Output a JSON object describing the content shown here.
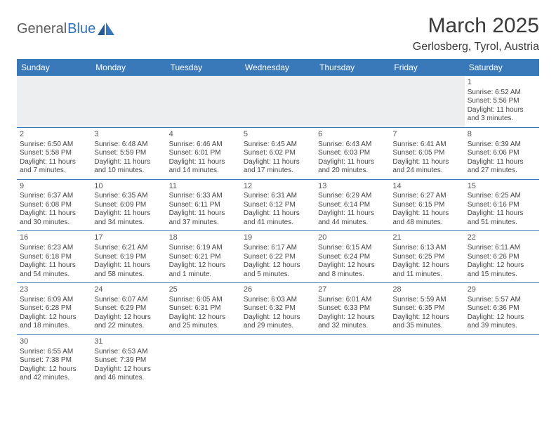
{
  "logo": {
    "general": "General",
    "blue": "Blue"
  },
  "title": "March 2025",
  "location": "Gerlosberg, Tyrol, Austria",
  "headerColor": "#3a79b9",
  "dayNames": [
    "Sunday",
    "Monday",
    "Tuesday",
    "Wednesday",
    "Thursday",
    "Friday",
    "Saturday"
  ],
  "weeks": [
    [
      null,
      null,
      null,
      null,
      null,
      null,
      {
        "n": "1",
        "sr": "Sunrise: 6:52 AM",
        "ss": "Sunset: 5:56 PM",
        "d1": "Daylight: 11 hours",
        "d2": "and 3 minutes."
      }
    ],
    [
      {
        "n": "2",
        "sr": "Sunrise: 6:50 AM",
        "ss": "Sunset: 5:58 PM",
        "d1": "Daylight: 11 hours",
        "d2": "and 7 minutes."
      },
      {
        "n": "3",
        "sr": "Sunrise: 6:48 AM",
        "ss": "Sunset: 5:59 PM",
        "d1": "Daylight: 11 hours",
        "d2": "and 10 minutes."
      },
      {
        "n": "4",
        "sr": "Sunrise: 6:46 AM",
        "ss": "Sunset: 6:01 PM",
        "d1": "Daylight: 11 hours",
        "d2": "and 14 minutes."
      },
      {
        "n": "5",
        "sr": "Sunrise: 6:45 AM",
        "ss": "Sunset: 6:02 PM",
        "d1": "Daylight: 11 hours",
        "d2": "and 17 minutes."
      },
      {
        "n": "6",
        "sr": "Sunrise: 6:43 AM",
        "ss": "Sunset: 6:03 PM",
        "d1": "Daylight: 11 hours",
        "d2": "and 20 minutes."
      },
      {
        "n": "7",
        "sr": "Sunrise: 6:41 AM",
        "ss": "Sunset: 6:05 PM",
        "d1": "Daylight: 11 hours",
        "d2": "and 24 minutes."
      },
      {
        "n": "8",
        "sr": "Sunrise: 6:39 AM",
        "ss": "Sunset: 6:06 PM",
        "d1": "Daylight: 11 hours",
        "d2": "and 27 minutes."
      }
    ],
    [
      {
        "n": "9",
        "sr": "Sunrise: 6:37 AM",
        "ss": "Sunset: 6:08 PM",
        "d1": "Daylight: 11 hours",
        "d2": "and 30 minutes."
      },
      {
        "n": "10",
        "sr": "Sunrise: 6:35 AM",
        "ss": "Sunset: 6:09 PM",
        "d1": "Daylight: 11 hours",
        "d2": "and 34 minutes."
      },
      {
        "n": "11",
        "sr": "Sunrise: 6:33 AM",
        "ss": "Sunset: 6:11 PM",
        "d1": "Daylight: 11 hours",
        "d2": "and 37 minutes."
      },
      {
        "n": "12",
        "sr": "Sunrise: 6:31 AM",
        "ss": "Sunset: 6:12 PM",
        "d1": "Daylight: 11 hours",
        "d2": "and 41 minutes."
      },
      {
        "n": "13",
        "sr": "Sunrise: 6:29 AM",
        "ss": "Sunset: 6:14 PM",
        "d1": "Daylight: 11 hours",
        "d2": "and 44 minutes."
      },
      {
        "n": "14",
        "sr": "Sunrise: 6:27 AM",
        "ss": "Sunset: 6:15 PM",
        "d1": "Daylight: 11 hours",
        "d2": "and 48 minutes."
      },
      {
        "n": "15",
        "sr": "Sunrise: 6:25 AM",
        "ss": "Sunset: 6:16 PM",
        "d1": "Daylight: 11 hours",
        "d2": "and 51 minutes."
      }
    ],
    [
      {
        "n": "16",
        "sr": "Sunrise: 6:23 AM",
        "ss": "Sunset: 6:18 PM",
        "d1": "Daylight: 11 hours",
        "d2": "and 54 minutes."
      },
      {
        "n": "17",
        "sr": "Sunrise: 6:21 AM",
        "ss": "Sunset: 6:19 PM",
        "d1": "Daylight: 11 hours",
        "d2": "and 58 minutes."
      },
      {
        "n": "18",
        "sr": "Sunrise: 6:19 AM",
        "ss": "Sunset: 6:21 PM",
        "d1": "Daylight: 12 hours",
        "d2": "and 1 minute."
      },
      {
        "n": "19",
        "sr": "Sunrise: 6:17 AM",
        "ss": "Sunset: 6:22 PM",
        "d1": "Daylight: 12 hours",
        "d2": "and 5 minutes."
      },
      {
        "n": "20",
        "sr": "Sunrise: 6:15 AM",
        "ss": "Sunset: 6:24 PM",
        "d1": "Daylight: 12 hours",
        "d2": "and 8 minutes."
      },
      {
        "n": "21",
        "sr": "Sunrise: 6:13 AM",
        "ss": "Sunset: 6:25 PM",
        "d1": "Daylight: 12 hours",
        "d2": "and 11 minutes."
      },
      {
        "n": "22",
        "sr": "Sunrise: 6:11 AM",
        "ss": "Sunset: 6:26 PM",
        "d1": "Daylight: 12 hours",
        "d2": "and 15 minutes."
      }
    ],
    [
      {
        "n": "23",
        "sr": "Sunrise: 6:09 AM",
        "ss": "Sunset: 6:28 PM",
        "d1": "Daylight: 12 hours",
        "d2": "and 18 minutes."
      },
      {
        "n": "24",
        "sr": "Sunrise: 6:07 AM",
        "ss": "Sunset: 6:29 PM",
        "d1": "Daylight: 12 hours",
        "d2": "and 22 minutes."
      },
      {
        "n": "25",
        "sr": "Sunrise: 6:05 AM",
        "ss": "Sunset: 6:31 PM",
        "d1": "Daylight: 12 hours",
        "d2": "and 25 minutes."
      },
      {
        "n": "26",
        "sr": "Sunrise: 6:03 AM",
        "ss": "Sunset: 6:32 PM",
        "d1": "Daylight: 12 hours",
        "d2": "and 29 minutes."
      },
      {
        "n": "27",
        "sr": "Sunrise: 6:01 AM",
        "ss": "Sunset: 6:33 PM",
        "d1": "Daylight: 12 hours",
        "d2": "and 32 minutes."
      },
      {
        "n": "28",
        "sr": "Sunrise: 5:59 AM",
        "ss": "Sunset: 6:35 PM",
        "d1": "Daylight: 12 hours",
        "d2": "and 35 minutes."
      },
      {
        "n": "29",
        "sr": "Sunrise: 5:57 AM",
        "ss": "Sunset: 6:36 PM",
        "d1": "Daylight: 12 hours",
        "d2": "and 39 minutes."
      }
    ],
    [
      {
        "n": "30",
        "sr": "Sunrise: 6:55 AM",
        "ss": "Sunset: 7:38 PM",
        "d1": "Daylight: 12 hours",
        "d2": "and 42 minutes."
      },
      {
        "n": "31",
        "sr": "Sunrise: 6:53 AM",
        "ss": "Sunset: 7:39 PM",
        "d1": "Daylight: 12 hours",
        "d2": "and 46 minutes."
      },
      null,
      null,
      null,
      null,
      null
    ]
  ]
}
